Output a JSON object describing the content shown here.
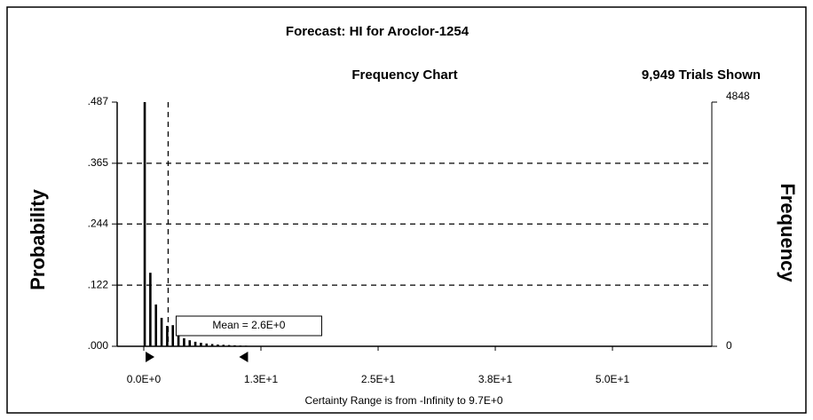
{
  "chart_data": {
    "type": "bar",
    "title": "Forecast: HI for Aroclor-1254",
    "subtitle": "Frequency Chart",
    "trials": "9,949 Trials Shown",
    "ylabel": "Probability",
    "y2label": "Frequency",
    "x": [
      0.1,
      0.7,
      1.3,
      1.9,
      2.5,
      3.1,
      3.7,
      4.3,
      4.9,
      5.5,
      6.1,
      6.7,
      7.3,
      7.9,
      8.5,
      9.1,
      9.7,
      10.3,
      10.9
    ],
    "series": [
      {
        "name": "Frequency",
        "color": "#000000",
        "axis": "y2",
        "values": [
          4848,
          1460,
          830,
          565,
          405,
          420,
          210,
          160,
          120,
          90,
          70,
          55,
          45,
          35,
          30,
          25,
          20,
          15,
          12
        ]
      }
    ],
    "xlim": [
      -2.84,
      60.6
    ],
    "xticks": [
      {
        "value": 0,
        "label": "0.0E+0"
      },
      {
        "value": 12.5,
        "label": "1.3E+1"
      },
      {
        "value": 25,
        "label": "2.5E+1"
      },
      {
        "value": 37.5,
        "label": "3.8E+1"
      },
      {
        "value": 50,
        "label": "5.0E+1"
      }
    ],
    "ylim": [
      0,
      0.487
    ],
    "yticks": [
      {
        "value": 0,
        "label": ".000"
      },
      {
        "value": 0.122,
        "label": ".122"
      },
      {
        "value": 0.244,
        "label": ".244"
      },
      {
        "value": 0.365,
        "label": ".365"
      },
      {
        "value": 0.487,
        "label": ".487"
      }
    ],
    "y2lim": [
      0,
      4848
    ],
    "y2ticks": [
      0,
      4848
    ],
    "grid": true,
    "mean": {
      "value": 2.6,
      "label": "Mean = 2.6E+0"
    },
    "certainty": {
      "upper": 9.7,
      "label": "Certainty Range is from -Infinity to 9.7E+0"
    }
  }
}
